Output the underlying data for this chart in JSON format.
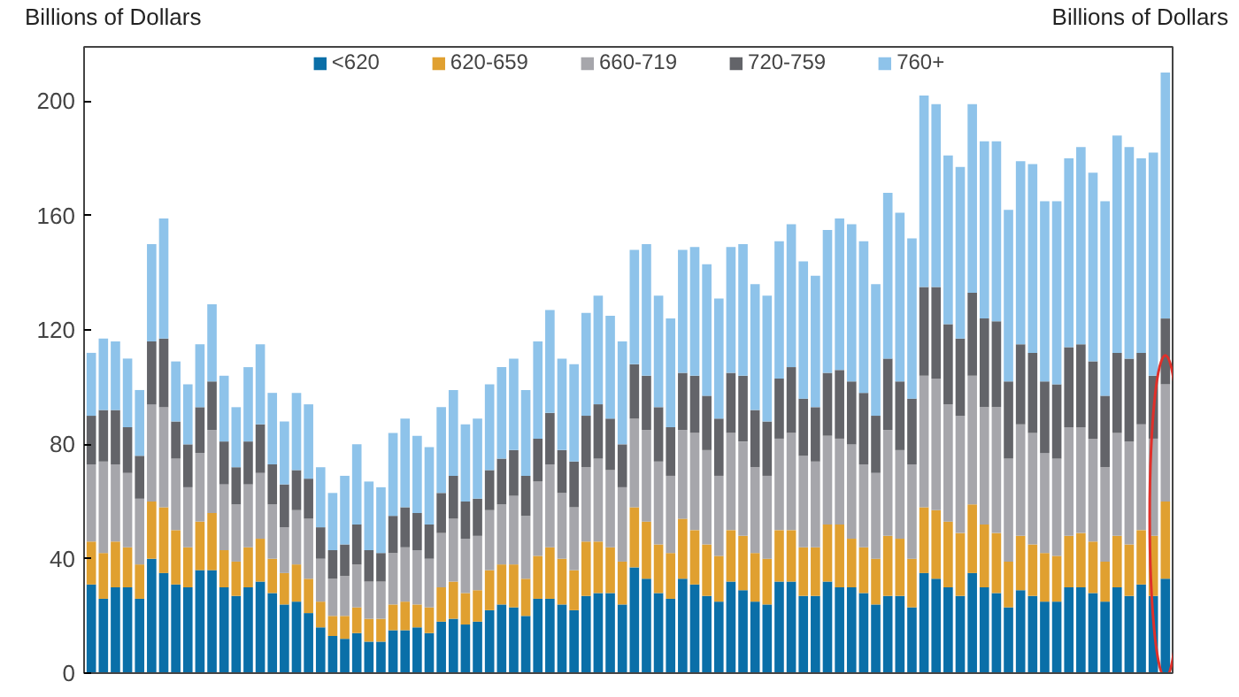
{
  "chart_data": {
    "type": "bar",
    "stacked": true,
    "ylabel": "Billions of Dollars",
    "y2label": "Billions of Dollars",
    "categories": [
      null,
      null,
      null,
      null,
      null,
      null,
      null,
      null,
      null,
      null,
      null,
      null,
      null,
      null,
      null,
      null,
      null,
      null,
      null,
      null,
      null,
      null,
      null,
      null,
      null,
      null,
      null,
      null,
      null,
      null,
      null,
      null,
      null,
      null,
      null,
      null,
      null,
      null,
      null,
      null,
      null,
      null,
      null,
      null,
      null,
      null,
      null,
      null,
      null,
      null,
      null,
      null,
      null,
      null,
      null,
      null,
      null,
      null,
      null,
      null,
      null,
      null,
      null,
      null,
      null,
      null,
      null,
      null,
      null,
      null,
      null,
      null,
      null,
      null,
      null,
      null,
      null,
      null,
      null,
      null,
      null,
      null,
      null,
      null,
      null,
      null,
      null,
      null,
      null,
      null
    ],
    "ylim": [
      0,
      219
    ],
    "yticks": [
      0,
      40,
      80,
      120,
      160,
      200
    ],
    "grid": false,
    "legend": "top",
    "tick_labels": "y",
    "series": [
      {
        "name": "<620",
        "color": "#0a6fa8",
        "values": [
          31,
          26,
          30,
          30,
          26,
          40,
          35,
          31,
          30,
          36,
          36,
          30,
          27,
          30,
          32,
          28,
          24,
          25,
          21,
          16,
          13,
          12,
          14,
          11,
          11,
          15,
          15,
          16,
          14,
          18,
          19,
          17,
          18,
          22,
          24,
          23,
          20,
          26,
          26,
          24,
          22,
          27,
          28,
          28,
          24,
          37,
          33,
          28,
          26,
          33,
          31,
          27,
          25,
          32,
          29,
          25,
          24,
          32,
          32,
          27,
          27,
          32,
          30,
          30,
          28,
          24,
          27,
          27,
          23,
          35,
          33,
          30,
          27,
          35,
          30,
          28,
          23,
          29,
          27,
          25,
          25,
          30,
          30,
          28,
          25,
          30,
          27,
          31,
          27,
          33
        ]
      },
      {
        "name": "620-659",
        "color": "#e0a030",
        "values": [
          15,
          16,
          16,
          14,
          12,
          20,
          23,
          19,
          14,
          17,
          20,
          13,
          12,
          14,
          15,
          12,
          11,
          13,
          12,
          9,
          7,
          8,
          9,
          8,
          8,
          9,
          10,
          8,
          9,
          12,
          13,
          11,
          11,
          14,
          14,
          15,
          13,
          15,
          18,
          16,
          14,
          19,
          18,
          16,
          15,
          21,
          20,
          17,
          16,
          21,
          19,
          18,
          16,
          18,
          19,
          17,
          16,
          18,
          18,
          17,
          17,
          20,
          22,
          17,
          16,
          16,
          21,
          20,
          17,
          23,
          24,
          23,
          22,
          24,
          22,
          21,
          16,
          19,
          18,
          17,
          16,
          18,
          19,
          18,
          14,
          18,
          18,
          19,
          21,
          27
        ]
      },
      {
        "name": "660-719",
        "color": "#a6a6ab",
        "values": [
          27,
          32,
          27,
          26,
          23,
          34,
          35,
          25,
          21,
          24,
          29,
          23,
          20,
          22,
          23,
          19,
          16,
          19,
          21,
          15,
          13,
          14,
          15,
          13,
          13,
          18,
          19,
          19,
          17,
          19,
          22,
          19,
          19,
          21,
          21,
          24,
          22,
          26,
          29,
          23,
          22,
          26,
          29,
          27,
          26,
          31,
          32,
          29,
          27,
          31,
          34,
          33,
          28,
          34,
          33,
          30,
          29,
          32,
          34,
          32,
          30,
          31,
          30,
          33,
          29,
          30,
          37,
          31,
          33,
          46,
          46,
          41,
          41,
          45,
          41,
          44,
          36,
          39,
          39,
          35,
          34,
          38,
          37,
          36,
          33,
          36,
          36,
          37,
          34,
          41
        ]
      },
      {
        "name": "720-759",
        "color": "#636469",
        "values": [
          17,
          18,
          19,
          16,
          15,
          22,
          24,
          13,
          15,
          16,
          17,
          15,
          13,
          15,
          17,
          14,
          15,
          14,
          14,
          11,
          10,
          11,
          14,
          11,
          10,
          13,
          14,
          13,
          12,
          14,
          15,
          13,
          13,
          14,
          16,
          16,
          14,
          15,
          18,
          15,
          16,
          18,
          19,
          18,
          15,
          19,
          19,
          19,
          17,
          20,
          20,
          19,
          20,
          21,
          23,
          20,
          19,
          21,
          23,
          20,
          19,
          22,
          24,
          22,
          25,
          20,
          25,
          24,
          23,
          31,
          32,
          28,
          27,
          29,
          31,
          30,
          27,
          28,
          28,
          25,
          26,
          28,
          29,
          27,
          25,
          28,
          29,
          25,
          22,
          23
        ]
      },
      {
        "name": "760+",
        "color": "#8ec3ea",
        "values": [
          22,
          25,
          24,
          24,
          23,
          34,
          42,
          21,
          21,
          22,
          27,
          23,
          21,
          26,
          28,
          25,
          22,
          27,
          26,
          21,
          20,
          24,
          28,
          24,
          23,
          29,
          31,
          27,
          27,
          30,
          30,
          27,
          28,
          30,
          32,
          32,
          30,
          34,
          36,
          32,
          34,
          36,
          38,
          36,
          36,
          40,
          46,
          39,
          38,
          43,
          45,
          46,
          42,
          44,
          46,
          44,
          44,
          48,
          50,
          48,
          46,
          50,
          53,
          55,
          53,
          46,
          58,
          59,
          56,
          67,
          64,
          59,
          60,
          66,
          62,
          63,
          60,
          64,
          66,
          63,
          64,
          66,
          69,
          66,
          68,
          76,
          74,
          68,
          78,
          86
        ]
      }
    ]
  }
}
